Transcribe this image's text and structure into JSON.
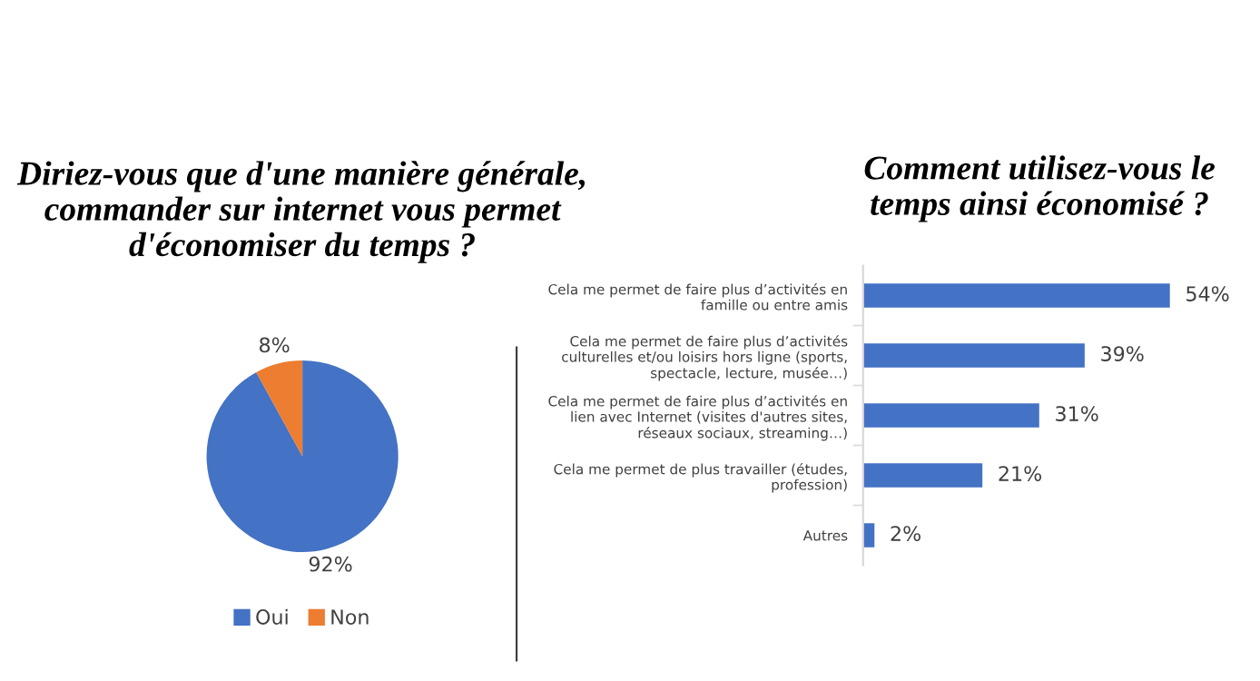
{
  "chart_data": [
    {
      "type": "pie",
      "title": "Diriez-vous que d'une manière générale, commander sur internet vous permet d'économiser du temps ?",
      "categories": [
        "Oui",
        "Non"
      ],
      "values": [
        92,
        8
      ],
      "colors": [
        "#4472c4",
        "#ed7d31"
      ],
      "value_labels": [
        "92%",
        "8%"
      ],
      "legend": "bottom"
    },
    {
      "type": "bar",
      "orientation": "horizontal",
      "title": "Comment utilisez-vous le temps ainsi économisé ?",
      "categories": [
        "Cela me permet de faire plus d’activités en\nfamille ou entre amis",
        "Cela me permet de faire plus d’activités\nculturelles et/ou loisirs hors ligne (sports,\nspectacle, lecture, musée…)",
        "Cela me permet de faire plus d’activités en\nlien avec Internet (visites d'autres sites,\nréseaux sociaux, streaming…)",
        "Cela me permet de plus travailler (études,\nprofession)",
        "Autres"
      ],
      "values": [
        54,
        39,
        31,
        21,
        2
      ],
      "color": "#4472c4",
      "value_labels": [
        "54%",
        "39%",
        "31%",
        "21%",
        "2%"
      ],
      "legend": false
    }
  ]
}
